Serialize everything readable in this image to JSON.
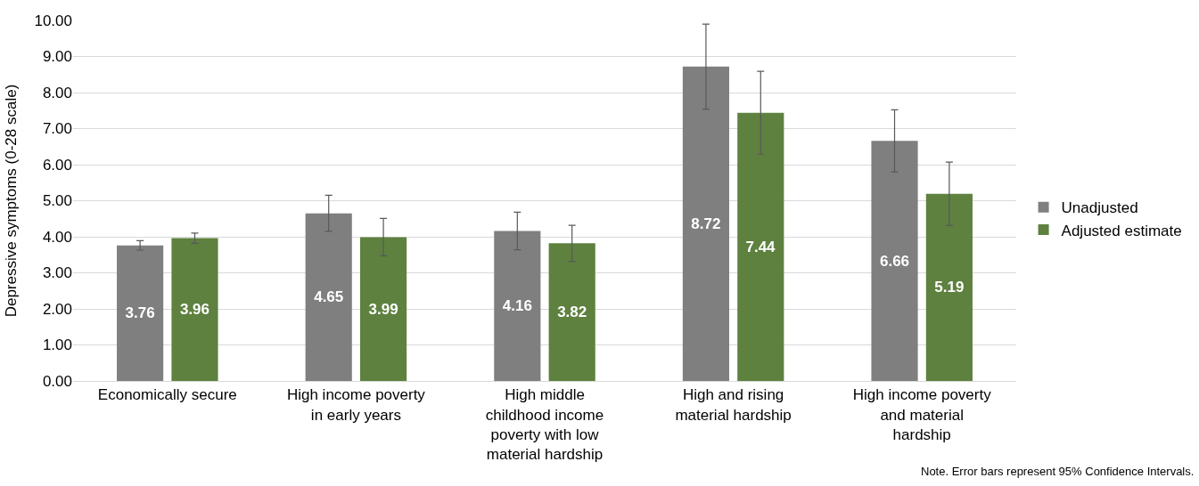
{
  "chart_data": {
    "type": "bar",
    "ylabel": "Depressive symptoms (0-28 scale)",
    "categories": [
      "Economically secure",
      "High income poverty in early years",
      "High middle childhood income poverty with low material hardship",
      "High and rising material hardship",
      "High income poverty and material hardship"
    ],
    "series": [
      {
        "name": "Unadjusted",
        "color": "#7f7f7f",
        "values": [
          3.76,
          4.65,
          4.16,
          8.72,
          6.66
        ],
        "errors": [
          0.13,
          0.5,
          0.52,
          1.18,
          0.86
        ]
      },
      {
        "name": "Adjusted estimate",
        "color": "#5e813f",
        "values": [
          3.96,
          3.99,
          3.82,
          7.44,
          5.19
        ],
        "errors": [
          0.14,
          0.52,
          0.5,
          1.15,
          0.88
        ]
      }
    ],
    "ylim": [
      0,
      10
    ],
    "yticks": [
      {
        "value": 0,
        "label": "0.00"
      },
      {
        "value": 1,
        "label": "1.00"
      },
      {
        "value": 2,
        "label": "2.00"
      },
      {
        "value": 3,
        "label": "3.00"
      },
      {
        "value": 4,
        "label": "4.00"
      },
      {
        "value": 5,
        "label": "5.00"
      },
      {
        "value": 6,
        "label": "6.00"
      },
      {
        "value": 7,
        "label": "7.00"
      },
      {
        "value": 8,
        "label": "8.00"
      },
      {
        "value": 9,
        "label": "9.00"
      },
      {
        "value": 10,
        "label": "10.00"
      }
    ],
    "grid": "y",
    "legend": "right",
    "data_labels": true,
    "annotations": [
      "Note. Error bars represent 95% Confidence Intervals."
    ]
  }
}
